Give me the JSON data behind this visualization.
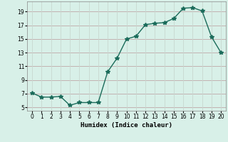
{
  "x": [
    0,
    1,
    2,
    3,
    4,
    5,
    6,
    7,
    8,
    9,
    10,
    11,
    12,
    13,
    14,
    15,
    16,
    17,
    18,
    19,
    20
  ],
  "y": [
    7.1,
    6.5,
    6.5,
    6.6,
    5.3,
    5.7,
    5.7,
    5.7,
    10.2,
    12.2,
    15.0,
    15.4,
    17.1,
    17.3,
    17.4,
    18.0,
    19.5,
    19.6,
    19.1,
    15.3,
    13.0
  ],
  "line_color": "#1a6b5a",
  "marker_color": "#1a6b5a",
  "bg_color": "#d8f0e8",
  "grid_color_v": "#c8d8d0",
  "grid_color_h": "#c0a8a8",
  "xlabel": "Humidex (Indice chaleur)",
  "xlim": [
    -0.5,
    20.5
  ],
  "ylim": [
    4.5,
    20.5
  ],
  "yticks": [
    5,
    7,
    9,
    11,
    13,
    15,
    17,
    19
  ],
  "xticks": [
    0,
    1,
    2,
    3,
    4,
    5,
    6,
    7,
    8,
    9,
    10,
    11,
    12,
    13,
    14,
    15,
    16,
    17,
    18,
    19,
    20
  ]
}
